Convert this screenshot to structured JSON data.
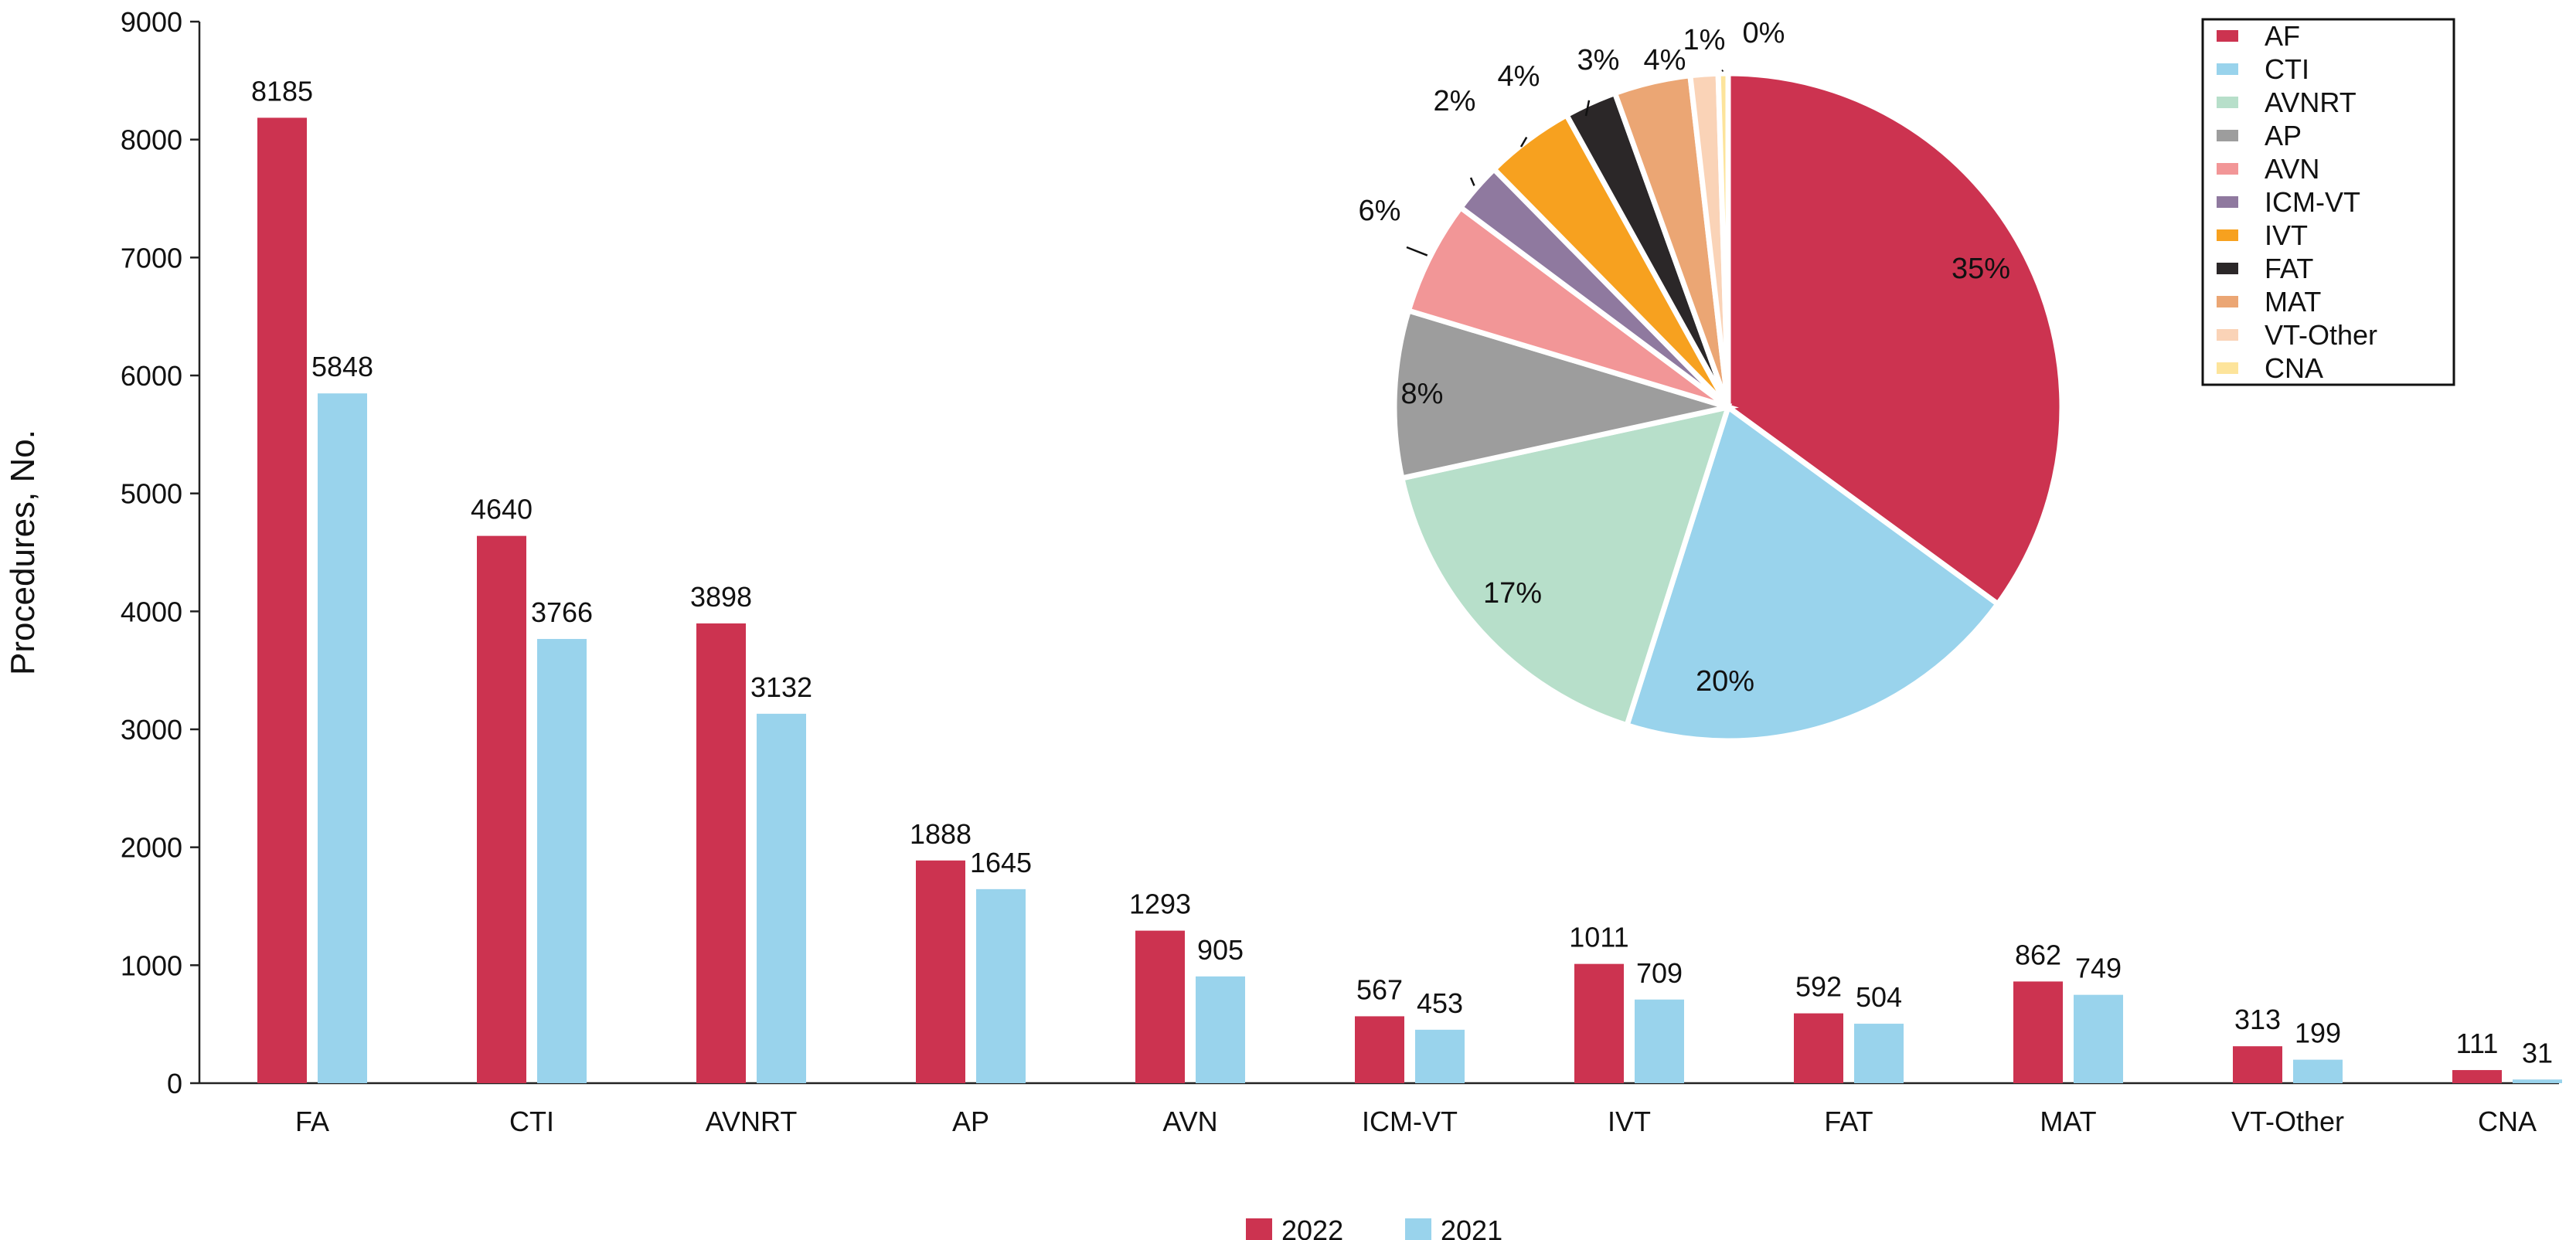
{
  "chart_data": [
    {
      "type": "bar",
      "ylabel": "Procedures, No.",
      "xlabel": "",
      "ylim": [
        0,
        9000
      ],
      "yticks": [
        0,
        1000,
        2000,
        3000,
        4000,
        5000,
        6000,
        7000,
        8000,
        9000
      ],
      "categories": [
        "FA",
        "CTI",
        "AVNRT",
        "AP",
        "AVN",
        "ICM-VT",
        "IVT",
        "FAT",
        "MAT",
        "VT-Other",
        "CNA"
      ],
      "series": [
        {
          "name": "2022",
          "color": "#cc3350",
          "values": [
            8185,
            4640,
            3898,
            1888,
            1293,
            567,
            1011,
            592,
            862,
            313,
            111
          ]
        },
        {
          "name": "2021",
          "color": "#99d3ec",
          "values": [
            5848,
            3766,
            3132,
            1645,
            905,
            453,
            709,
            504,
            749,
            199,
            31
          ]
        }
      ],
      "legend_position": "bottom",
      "grid": false
    },
    {
      "type": "pie",
      "labels": [
        "AF",
        "CTI",
        "AVNRT",
        "AP",
        "AVN",
        "ICM-VT",
        "IVT",
        "FAT",
        "MAT",
        "VT-Other",
        "CNA"
      ],
      "values": [
        8185,
        4640,
        3898,
        1888,
        1293,
        567,
        1011,
        592,
        862,
        313,
        111
      ],
      "percent_labels": [
        "35%",
        "20%",
        "17%",
        "8%",
        "6%",
        "2%",
        "4%",
        "3%",
        "4%",
        "1%",
        "0%"
      ],
      "colors": [
        "#cc3350",
        "#99d3ec",
        "#b7dfca",
        "#9d9d9d",
        "#f29697",
        "#8f799f",
        "#f7a11f",
        "#2b2728",
        "#eba674",
        "#fad3b7",
        "#fde49b"
      ],
      "legend_position": "top-right"
    }
  ]
}
